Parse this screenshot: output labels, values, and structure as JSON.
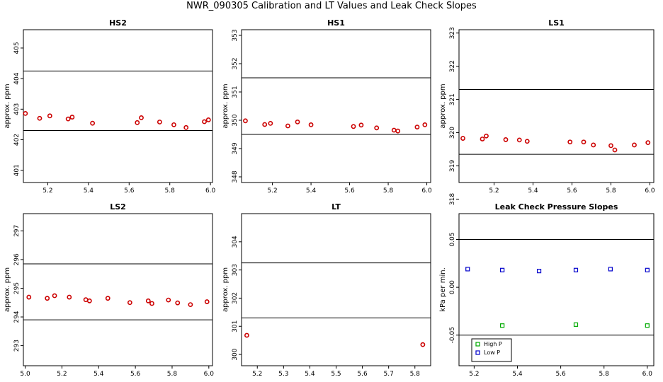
{
  "page": {
    "title": "NWR_090305  Calibration and LT Values and Leak Check Slopes"
  },
  "chart_data": [
    {
      "type": "scatter",
      "title": "HS2",
      "xlabel": "",
      "ylabel": "approx. ppm",
      "xlim": [
        5.08,
        6.01
      ],
      "ylim": [
        400.6,
        405.6
      ],
      "xticks": [
        "5.2",
        "5.4",
        "5.6",
        "5.8",
        "6.0"
      ],
      "yticks": [
        "401",
        "402",
        "403",
        "404",
        "405"
      ],
      "hlines": [
        402.3,
        404.25
      ],
      "grid": false,
      "series": [
        {
          "color": "#cc0000",
          "marker": "circle",
          "x": [
            5.09,
            5.16,
            5.21,
            5.3,
            5.32,
            5.42,
            5.64,
            5.66,
            5.75,
            5.82,
            5.88,
            5.97,
            5.99
          ],
          "y": [
            402.86,
            402.7,
            402.78,
            402.68,
            402.74,
            402.54,
            402.56,
            402.72,
            402.58,
            402.49,
            402.4,
            402.59,
            402.65
          ]
        }
      ]
    },
    {
      "type": "scatter",
      "title": "HS1",
      "xlabel": "",
      "ylabel": "approx. ppm",
      "xlim": [
        5.04,
        6.02
      ],
      "ylim": [
        347.8,
        353.2
      ],
      "xticks": [
        "5.2",
        "5.4",
        "5.6",
        "5.8",
        "6.0"
      ],
      "yticks": [
        "348",
        "349",
        "350",
        "351",
        "352",
        "353"
      ],
      "hlines": [
        349.5,
        351.5
      ],
      "grid": false,
      "series": [
        {
          "color": "#cc0000",
          "marker": "circle",
          "x": [
            5.06,
            5.16,
            5.19,
            5.28,
            5.33,
            5.4,
            5.62,
            5.66,
            5.74,
            5.83,
            5.85,
            5.95,
            5.99
          ],
          "y": [
            349.98,
            349.85,
            349.89,
            349.8,
            349.94,
            349.84,
            349.78,
            349.83,
            349.73,
            349.65,
            349.62,
            349.76,
            349.84
          ]
        }
      ]
    },
    {
      "type": "scatter",
      "title": "LS1",
      "xlabel": "",
      "ylabel": "approx. ppm",
      "xlim": [
        5.02,
        6.02
      ],
      "ylim": [
        318.5,
        323.1
      ],
      "xticks": [
        "5.2",
        "5.4",
        "5.6",
        "5.8",
        "6.0"
      ],
      "yticks": [
        "318",
        "319",
        "320",
        "321",
        "322",
        "323"
      ],
      "hlines": [
        319.35,
        321.3
      ],
      "grid": false,
      "series": [
        {
          "color": "#cc0000",
          "marker": "circle",
          "x": [
            5.04,
            5.14,
            5.16,
            5.26,
            5.33,
            5.37,
            5.59,
            5.66,
            5.71,
            5.8,
            5.82,
            5.92,
            5.99
          ],
          "y": [
            319.83,
            319.81,
            319.9,
            319.79,
            319.78,
            319.74,
            319.72,
            319.72,
            319.63,
            319.61,
            319.48,
            319.63,
            319.7
          ]
        }
      ]
    },
    {
      "type": "scatter",
      "title": "LS2",
      "xlabel": "",
      "ylabel": "approx. ppm",
      "xlim": [
        4.99,
        6.02
      ],
      "ylim": [
        292.3,
        297.6
      ],
      "xticks": [
        "5.0",
        "5.2",
        "5.4",
        "5.6",
        "5.8",
        "6.0"
      ],
      "yticks": [
        "293",
        "294",
        "295",
        "296",
        "297"
      ],
      "hlines": [
        293.9,
        295.85
      ],
      "grid": false,
      "series": [
        {
          "color": "#cc0000",
          "marker": "circle",
          "x": [
            5.02,
            5.12,
            5.16,
            5.24,
            5.33,
            5.35,
            5.45,
            5.57,
            5.67,
            5.69,
            5.78,
            5.83,
            5.9,
            5.99
          ],
          "y": [
            294.69,
            294.65,
            294.74,
            294.69,
            294.6,
            294.56,
            294.65,
            294.5,
            294.56,
            294.47,
            294.59,
            294.49,
            294.43,
            294.53
          ]
        }
      ]
    },
    {
      "type": "scatter",
      "title": "LT",
      "xlabel": "",
      "ylabel": "approx. ppm",
      "xlim": [
        5.14,
        5.86
      ],
      "ylim": [
        299.6,
        305.0
      ],
      "xticks": [
        "5.2",
        "5.3",
        "5.4",
        "5.5",
        "5.6",
        "5.7",
        "5.8"
      ],
      "yticks": [
        "300",
        "301",
        "302",
        "303",
        "304"
      ],
      "hlines": [
        301.3,
        303.25
      ],
      "grid": false,
      "series": [
        {
          "color": "#cc0000",
          "marker": "circle",
          "x": [
            5.16,
            5.83
          ],
          "y": [
            300.68,
            300.35
          ]
        }
      ]
    },
    {
      "type": "scatter",
      "title": "Leak Check Pressure Slopes",
      "xlabel": "",
      "ylabel": "kPa per min.",
      "xlim": [
        5.13,
        6.03
      ],
      "ylim": [
        -0.082,
        0.077
      ],
      "xticks": [
        "5.2",
        "5.4",
        "5.6",
        "5.8",
        "6.0"
      ],
      "yticks": [
        "-0.05",
        "0.00",
        "0.05"
      ],
      "hlines": [
        -0.05,
        0.05
      ],
      "grid": false,
      "legend": "bottom-left",
      "series": [
        {
          "name": "High P",
          "color": "#00aa00",
          "marker": "square",
          "x": [
            5.33,
            5.67,
            6.0
          ],
          "y": [
            -0.04,
            -0.039,
            -0.04
          ]
        },
        {
          "name": "Low P",
          "color": "#0000cc",
          "marker": "square",
          "x": [
            5.17,
            5.33,
            5.5,
            5.67,
            5.83,
            6.0
          ],
          "y": [
            0.019,
            0.018,
            0.017,
            0.018,
            0.019,
            0.018
          ]
        }
      ]
    }
  ]
}
